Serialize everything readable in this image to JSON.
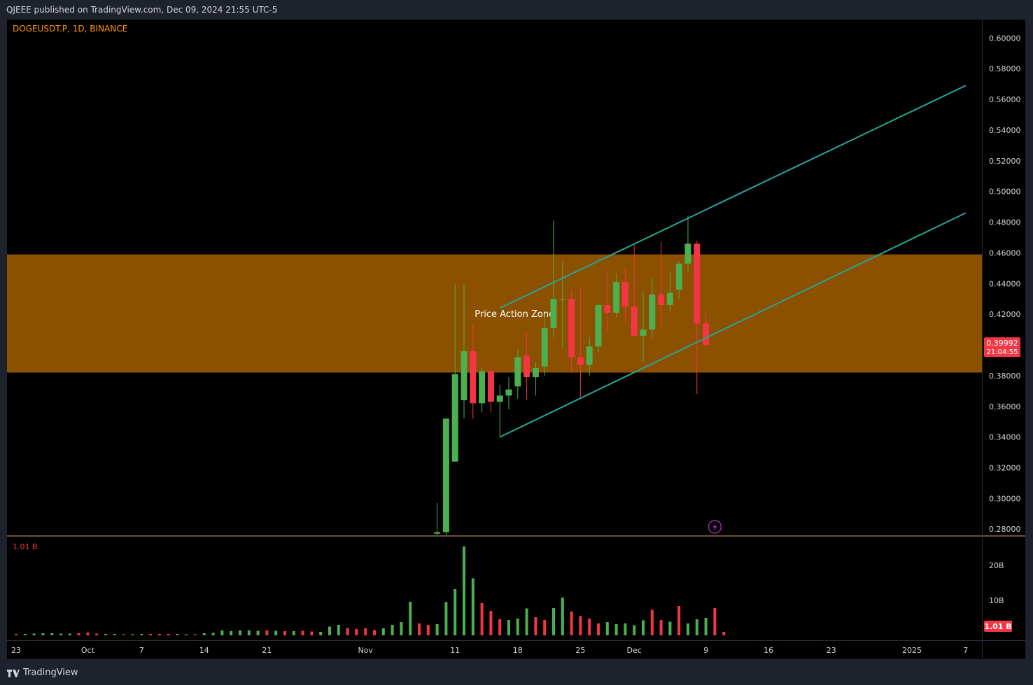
{
  "header": {
    "published": "QJEEE published on TradingView.com, Dec 09, 2024 21:55 UTC-5"
  },
  "footer": {
    "brand": "TradingView",
    "logo_icon": "tradingview-logo-icon"
  },
  "colors": {
    "up": "#4caf50",
    "down": "#f23645",
    "zone": "#8b5000",
    "channel": "#26a69a",
    "accent": "#ff9800"
  },
  "chart_data": {
    "type": "candlestick",
    "symbol_label": "DOGEUSDT.P, 1D, BINANCE",
    "ylim": [
      0.276,
      0.612
    ],
    "y_ticks": [
      0.28,
      0.3,
      0.32,
      0.34,
      0.36,
      0.38,
      0.4,
      0.42,
      0.44,
      0.46,
      0.48,
      0.5,
      0.52,
      0.54,
      0.56,
      0.58,
      0.6
    ],
    "y_tick_labels": [
      "0.28000",
      "0.30000",
      "0.32000",
      "0.34000",
      "0.36000",
      "0.38000",
      "0.40000",
      "0.42000",
      "0.44000",
      "0.46000",
      "0.48000",
      "0.50000",
      "0.52000",
      "0.54000",
      "0.56000",
      "0.58000",
      "0.60000"
    ],
    "x_range": [
      "2024-09-23",
      "2025-01-07"
    ],
    "x_ticks": [
      {
        "date": "2024-09-23",
        "label": "23"
      },
      {
        "date": "2024-10-01",
        "label": "Oct"
      },
      {
        "date": "2024-10-07",
        "label": "7"
      },
      {
        "date": "2024-10-14",
        "label": "14"
      },
      {
        "date": "2024-10-21",
        "label": "21"
      },
      {
        "date": "2024-11-01",
        "label": "Nov"
      },
      {
        "date": "2024-11-11",
        "label": "11"
      },
      {
        "date": "2024-11-18",
        "label": "18"
      },
      {
        "date": "2024-11-25",
        "label": "25"
      },
      {
        "date": "2024-12-01",
        "label": "Dec"
      },
      {
        "date": "2024-12-09",
        "label": "9"
      },
      {
        "date": "2024-12-16",
        "label": "16"
      },
      {
        "date": "2024-12-23",
        "label": "23"
      },
      {
        "date": "2025-01-01",
        "label": "2025"
      },
      {
        "date": "2025-01-07",
        "label": "7"
      }
    ],
    "candles": [
      {
        "date": "2024-11-09",
        "open": 0.277,
        "high": 0.297,
        "low": 0.276,
        "close": 0.278
      },
      {
        "date": "2024-11-10",
        "open": 0.278,
        "high": 0.352,
        "low": 0.276,
        "close": 0.352
      },
      {
        "date": "2024-11-11",
        "open": 0.324,
        "high": 0.44,
        "low": 0.327,
        "close": 0.381
      },
      {
        "date": "2024-11-12",
        "open": 0.364,
        "high": 0.44,
        "low": 0.352,
        "close": 0.396
      },
      {
        "date": "2024-11-13",
        "open": 0.396,
        "high": 0.413,
        "low": 0.352,
        "close": 0.362
      },
      {
        "date": "2024-11-14",
        "open": 0.362,
        "high": 0.385,
        "low": 0.356,
        "close": 0.383
      },
      {
        "date": "2024-11-15",
        "open": 0.383,
        "high": 0.387,
        "low": 0.356,
        "close": 0.363
      },
      {
        "date": "2024-11-16",
        "open": 0.363,
        "high": 0.374,
        "low": 0.34,
        "close": 0.367
      },
      {
        "date": "2024-11-17",
        "open": 0.367,
        "high": 0.379,
        "low": 0.358,
        "close": 0.371
      },
      {
        "date": "2024-11-18",
        "open": 0.373,
        "high": 0.397,
        "low": 0.365,
        "close": 0.392
      },
      {
        "date": "2024-11-19",
        "open": 0.393,
        "high": 0.408,
        "low": 0.364,
        "close": 0.379
      },
      {
        "date": "2024-11-20",
        "open": 0.379,
        "high": 0.389,
        "low": 0.367,
        "close": 0.385
      },
      {
        "date": "2024-11-21",
        "open": 0.386,
        "high": 0.42,
        "low": 0.38,
        "close": 0.411
      },
      {
        "date": "2024-11-22",
        "open": 0.411,
        "high": 0.481,
        "low": 0.404,
        "close": 0.43
      },
      {
        "date": "2024-11-23",
        "open": 0.43,
        "high": 0.454,
        "low": 0.398,
        "close": 0.43
      },
      {
        "date": "2024-11-24",
        "open": 0.43,
        "high": 0.436,
        "low": 0.382,
        "close": 0.392
      },
      {
        "date": "2024-11-25",
        "open": 0.392,
        "high": 0.438,
        "low": 0.366,
        "close": 0.387
      },
      {
        "date": "2024-11-26",
        "open": 0.387,
        "high": 0.405,
        "low": 0.38,
        "close": 0.399
      },
      {
        "date": "2024-11-27",
        "open": 0.399,
        "high": 0.427,
        "low": 0.395,
        "close": 0.426
      },
      {
        "date": "2024-11-28",
        "open": 0.426,
        "high": 0.448,
        "low": 0.408,
        "close": 0.421
      },
      {
        "date": "2024-11-29",
        "open": 0.421,
        "high": 0.447,
        "low": 0.418,
        "close": 0.441
      },
      {
        "date": "2024-11-30",
        "open": 0.441,
        "high": 0.45,
        "low": 0.415,
        "close": 0.425
      },
      {
        "date": "2024-12-01",
        "open": 0.425,
        "high": 0.465,
        "low": 0.405,
        "close": 0.406
      },
      {
        "date": "2024-12-02",
        "open": 0.406,
        "high": 0.434,
        "low": 0.389,
        "close": 0.41
      },
      {
        "date": "2024-12-03",
        "open": 0.41,
        "high": 0.444,
        "low": 0.405,
        "close": 0.433
      },
      {
        "date": "2024-12-04",
        "open": 0.433,
        "high": 0.467,
        "low": 0.411,
        "close": 0.426
      },
      {
        "date": "2024-12-05",
        "open": 0.426,
        "high": 0.448,
        "low": 0.422,
        "close": 0.434
      },
      {
        "date": "2024-12-06",
        "open": 0.436,
        "high": 0.455,
        "low": 0.43,
        "close": 0.453
      },
      {
        "date": "2024-12-07",
        "open": 0.453,
        "high": 0.484,
        "low": 0.448,
        "close": 0.466
      },
      {
        "date": "2024-12-08",
        "open": 0.466,
        "high": 0.468,
        "low": 0.368,
        "close": 0.414
      },
      {
        "date": "2024-12-09",
        "open": 0.414,
        "high": 0.422,
        "low": 0.399,
        "close": 0.4
      }
    ],
    "volume_axis": {
      "max": 25,
      "ticks": [
        10,
        20
      ],
      "tick_labels": [
        "10B",
        "20B"
      ],
      "unit": "B"
    },
    "volume": [
      {
        "date": "2024-09-23",
        "value": 0.4,
        "dir": "down"
      },
      {
        "date": "2024-09-24",
        "value": 0.4,
        "dir": "up"
      },
      {
        "date": "2024-09-25",
        "value": 0.5,
        "dir": "up"
      },
      {
        "date": "2024-09-26",
        "value": 0.6,
        "dir": "up"
      },
      {
        "date": "2024-09-27",
        "value": 0.6,
        "dir": "up"
      },
      {
        "date": "2024-09-28",
        "value": 0.5,
        "dir": "up"
      },
      {
        "date": "2024-09-29",
        "value": 0.5,
        "dir": "up"
      },
      {
        "date": "2024-09-30",
        "value": 0.6,
        "dir": "down"
      },
      {
        "date": "2024-10-01",
        "value": 0.8,
        "dir": "down"
      },
      {
        "date": "2024-10-02",
        "value": 0.5,
        "dir": "down"
      },
      {
        "date": "2024-10-03",
        "value": 0.4,
        "dir": "up"
      },
      {
        "date": "2024-10-04",
        "value": 0.4,
        "dir": "up"
      },
      {
        "date": "2024-10-05",
        "value": 0.3,
        "dir": "down"
      },
      {
        "date": "2024-10-06",
        "value": 0.3,
        "dir": "up"
      },
      {
        "date": "2024-10-07",
        "value": 0.4,
        "dir": "up"
      },
      {
        "date": "2024-10-08",
        "value": 0.4,
        "dir": "down"
      },
      {
        "date": "2024-10-09",
        "value": 0.4,
        "dir": "down"
      },
      {
        "date": "2024-10-10",
        "value": 0.4,
        "dir": "down"
      },
      {
        "date": "2024-10-11",
        "value": 0.4,
        "dir": "up"
      },
      {
        "date": "2024-10-12",
        "value": 0.3,
        "dir": "up"
      },
      {
        "date": "2024-10-13",
        "value": 0.3,
        "dir": "down"
      },
      {
        "date": "2024-10-14",
        "value": 0.6,
        "dir": "up"
      },
      {
        "date": "2024-10-15",
        "value": 0.7,
        "dir": "up"
      },
      {
        "date": "2024-10-16",
        "value": 1.4,
        "dir": "up"
      },
      {
        "date": "2024-10-17",
        "value": 1.2,
        "dir": "up"
      },
      {
        "date": "2024-10-18",
        "value": 1.4,
        "dir": "up"
      },
      {
        "date": "2024-10-19",
        "value": 1.4,
        "dir": "up"
      },
      {
        "date": "2024-10-20",
        "value": 1.3,
        "dir": "up"
      },
      {
        "date": "2024-10-21",
        "value": 1.4,
        "dir": "down"
      },
      {
        "date": "2024-10-22",
        "value": 1.3,
        "dir": "up"
      },
      {
        "date": "2024-10-23",
        "value": 1.2,
        "dir": "down"
      },
      {
        "date": "2024-10-24",
        "value": 1.2,
        "dir": "up"
      },
      {
        "date": "2024-10-25",
        "value": 1.3,
        "dir": "down"
      },
      {
        "date": "2024-10-26",
        "value": 1.1,
        "dir": "down"
      },
      {
        "date": "2024-10-27",
        "value": 1.0,
        "dir": "up"
      },
      {
        "date": "2024-10-28",
        "value": 2.5,
        "dir": "up"
      },
      {
        "date": "2024-10-29",
        "value": 3.0,
        "dir": "up"
      },
      {
        "date": "2024-10-30",
        "value": 2.1,
        "dir": "down"
      },
      {
        "date": "2024-10-31",
        "value": 1.8,
        "dir": "down"
      },
      {
        "date": "2024-11-01",
        "value": 2.0,
        "dir": "down"
      },
      {
        "date": "2024-11-02",
        "value": 1.5,
        "dir": "down"
      },
      {
        "date": "2024-11-03",
        "value": 2.0,
        "dir": "up"
      },
      {
        "date": "2024-11-04",
        "value": 3.0,
        "dir": "up"
      },
      {
        "date": "2024-11-05",
        "value": 3.8,
        "dir": "up"
      },
      {
        "date": "2024-11-06",
        "value": 9.6,
        "dir": "up"
      },
      {
        "date": "2024-11-07",
        "value": 3.4,
        "dir": "down"
      },
      {
        "date": "2024-11-08",
        "value": 3.0,
        "dir": "down"
      },
      {
        "date": "2024-11-09",
        "value": 3.2,
        "dir": "up"
      },
      {
        "date": "2024-11-10",
        "value": 9.5,
        "dir": "up"
      },
      {
        "date": "2024-11-11",
        "value": 13.2,
        "dir": "up"
      },
      {
        "date": "2024-11-12",
        "value": 25.4,
        "dir": "up"
      },
      {
        "date": "2024-11-13",
        "value": 16.3,
        "dir": "up"
      },
      {
        "date": "2024-11-14",
        "value": 9.2,
        "dir": "down"
      },
      {
        "date": "2024-11-15",
        "value": 7.0,
        "dir": "down"
      },
      {
        "date": "2024-11-16",
        "value": 4.6,
        "dir": "down"
      },
      {
        "date": "2024-11-17",
        "value": 4.4,
        "dir": "up"
      },
      {
        "date": "2024-11-18",
        "value": 4.8,
        "dir": "up"
      },
      {
        "date": "2024-11-19",
        "value": 7.7,
        "dir": "up"
      },
      {
        "date": "2024-11-20",
        "value": 5.2,
        "dir": "down"
      },
      {
        "date": "2024-11-21",
        "value": 4.4,
        "dir": "down"
      },
      {
        "date": "2024-11-22",
        "value": 7.8,
        "dir": "up"
      },
      {
        "date": "2024-11-23",
        "value": 10.8,
        "dir": "up"
      },
      {
        "date": "2024-11-24",
        "value": 6.8,
        "dir": "down"
      },
      {
        "date": "2024-11-25",
        "value": 5.5,
        "dir": "down"
      },
      {
        "date": "2024-11-26",
        "value": 4.8,
        "dir": "down"
      },
      {
        "date": "2024-11-27",
        "value": 3.4,
        "dir": "down"
      },
      {
        "date": "2024-11-28",
        "value": 3.8,
        "dir": "up"
      },
      {
        "date": "2024-11-29",
        "value": 3.2,
        "dir": "up"
      },
      {
        "date": "2024-11-30",
        "value": 3.4,
        "dir": "up"
      },
      {
        "date": "2024-12-01",
        "value": 2.9,
        "dir": "up"
      },
      {
        "date": "2024-12-02",
        "value": 4.3,
        "dir": "up"
      },
      {
        "date": "2024-12-03",
        "value": 7.3,
        "dir": "down"
      },
      {
        "date": "2024-12-04",
        "value": 4.4,
        "dir": "down"
      },
      {
        "date": "2024-12-05",
        "value": 3.9,
        "dir": "up"
      },
      {
        "date": "2024-12-06",
        "value": 8.4,
        "dir": "down"
      },
      {
        "date": "2024-12-07",
        "value": 3.4,
        "dir": "up"
      },
      {
        "date": "2024-12-08",
        "value": 4.6,
        "dir": "up"
      },
      {
        "date": "2024-12-09",
        "value": 5.0,
        "dir": "up"
      },
      {
        "date": "2024-12-10",
        "value": 7.8,
        "dir": "down"
      },
      {
        "date": "2024-12-11",
        "value": 1.01,
        "dir": "down"
      }
    ],
    "volume_label": "1.01 B",
    "current_volume_label": "1.01 B",
    "current_price": {
      "value": 0.39992,
      "label": "0.39992",
      "countdown": "21:04:55"
    },
    "zone": {
      "low": 0.382,
      "high": 0.459,
      "label": "Price Action Zone"
    },
    "channel": {
      "upper": [
        {
          "date": "2024-11-16",
          "price": 0.424
        },
        {
          "date": "2025-01-07",
          "price": 0.569
        }
      ],
      "lower": [
        {
          "date": "2024-11-16",
          "price": 0.34
        },
        {
          "date": "2025-01-07",
          "price": 0.486
        }
      ]
    },
    "marker_icon": "lightning-icon"
  }
}
